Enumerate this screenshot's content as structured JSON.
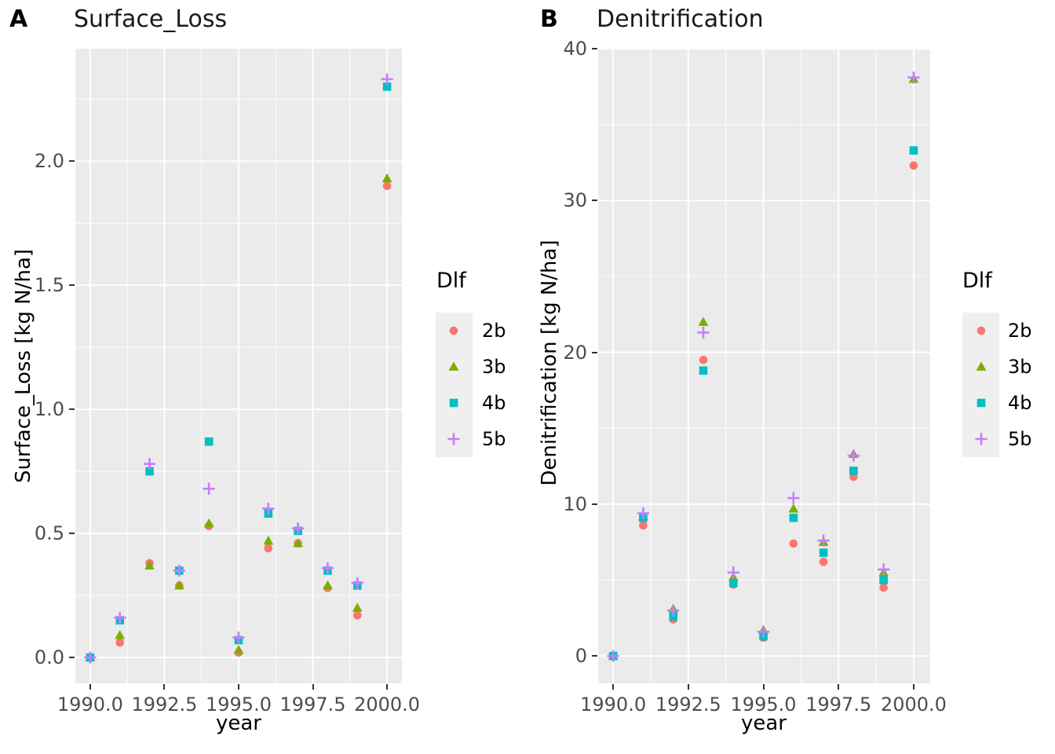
{
  "palette": {
    "panel_background": "#EBEBEB",
    "grid_line": "#FFFFFF",
    "tick_label_color": "#4D4D4D",
    "tick_mark_color": "#333333",
    "axis_title_color": "#000000",
    "legend_key_background": "#EFEFEF",
    "series_colors": {
      "2b": "#F8766D",
      "3b": "#7CAE00",
      "4b": "#00BFC4",
      "5b": "#C77CFF"
    }
  },
  "legend": {
    "title": "Dlf",
    "entries": [
      {
        "label": "2b",
        "shape": "circle",
        "color": "#F8766D"
      },
      {
        "label": "3b",
        "shape": "triangle",
        "color": "#7CAE00"
      },
      {
        "label": "4b",
        "shape": "square",
        "color": "#00BFC4"
      },
      {
        "label": "5b",
        "shape": "plus",
        "color": "#C77CFF"
      }
    ]
  },
  "chart_data": [
    {
      "type": "scatter",
      "tag": "A",
      "title": "Surface_Loss",
      "xlabel": "year",
      "ylabel": "Surface_Loss [kg N/ha]",
      "x": [
        1990,
        1991,
        1992,
        1993,
        1994,
        1995,
        1996,
        1997,
        1998,
        1999,
        2000
      ],
      "series": [
        {
          "name": "2b",
          "shape": "circle",
          "color": "#F8766D",
          "values": [
            0.0,
            0.06,
            0.38,
            0.29,
            0.53,
            0.02,
            0.44,
            0.46,
            0.28,
            0.17,
            1.9
          ]
        },
        {
          "name": "3b",
          "shape": "triangle",
          "color": "#7CAE00",
          "values": [
            0.0,
            0.09,
            0.37,
            0.29,
            0.54,
            0.03,
            0.47,
            0.46,
            0.29,
            0.2,
            1.93
          ]
        },
        {
          "name": "4b",
          "shape": "square",
          "color": "#00BFC4",
          "values": [
            0.0,
            0.15,
            0.75,
            0.35,
            0.87,
            0.07,
            0.58,
            0.51,
            0.35,
            0.29,
            2.3
          ]
        },
        {
          "name": "5b",
          "shape": "plus",
          "color": "#C77CFF",
          "values": [
            0.0,
            0.16,
            0.78,
            0.35,
            0.68,
            0.08,
            0.6,
            0.52,
            0.36,
            0.3,
            2.33
          ]
        }
      ],
      "x_ticks": [
        {
          "label": "1990.0",
          "value": 1990.0
        },
        {
          "label": "1992.5",
          "value": 1992.5
        },
        {
          "label": "1995.0",
          "value": 1995.0
        },
        {
          "label": "1997.5",
          "value": 1997.5
        },
        {
          "label": "2000.0",
          "value": 2000.0
        }
      ],
      "y_ticks": [
        {
          "label": "0.0",
          "value": 0.0
        },
        {
          "label": "0.5",
          "value": 0.5
        },
        {
          "label": "1.0",
          "value": 1.0
        },
        {
          "label": "1.5",
          "value": 1.5
        },
        {
          "label": "2.0",
          "value": 2.0
        }
      ],
      "minor_x": [
        1991.25,
        1993.75,
        1996.25,
        1998.75
      ],
      "minor_y": [
        0.25,
        0.75,
        1.25,
        1.75,
        2.25
      ],
      "xlim": [
        1989.5,
        2000.5
      ],
      "ylim": [
        -0.104,
        2.453
      ],
      "grid": true,
      "legend_position": "right"
    },
    {
      "type": "scatter",
      "tag": "B",
      "title": "Denitrification",
      "xlabel": "year",
      "ylabel": "Denitrification [kg N/ha]",
      "x": [
        1990,
        1991,
        1992,
        1993,
        1994,
        1995,
        1996,
        1997,
        1998,
        1999,
        2000
      ],
      "series": [
        {
          "name": "2b",
          "shape": "circle",
          "color": "#F8766D",
          "values": [
            0.0,
            8.6,
            2.4,
            19.5,
            4.7,
            1.2,
            7.4,
            6.2,
            11.8,
            4.5,
            32.3
          ]
        },
        {
          "name": "3b",
          "shape": "triangle",
          "color": "#7CAE00",
          "values": [
            0.0,
            9.2,
            3.1,
            22.0,
            5.2,
            1.7,
            9.7,
            7.5,
            13.3,
            5.5,
            38.0
          ]
        },
        {
          "name": "4b",
          "shape": "square",
          "color": "#00BFC4",
          "values": [
            0.0,
            9.1,
            2.6,
            18.8,
            4.8,
            1.3,
            9.1,
            6.8,
            12.2,
            5.0,
            33.3
          ]
        },
        {
          "name": "5b",
          "shape": "plus",
          "color": "#C77CFF",
          "values": [
            0.0,
            9.4,
            3.0,
            21.3,
            5.5,
            1.6,
            10.4,
            7.6,
            13.2,
            5.7,
            38.1
          ]
        }
      ],
      "x_ticks": [
        {
          "label": "1990.0",
          "value": 1990.0
        },
        {
          "label": "1992.5",
          "value": 1992.5
        },
        {
          "label": "1995.0",
          "value": 1995.0
        },
        {
          "label": "1997.5",
          "value": 1997.5
        },
        {
          "label": "2000.0",
          "value": 2000.0
        }
      ],
      "y_ticks": [
        {
          "label": "0",
          "value": 0
        },
        {
          "label": "10",
          "value": 10
        },
        {
          "label": "20",
          "value": 20
        },
        {
          "label": "30",
          "value": 30
        },
        {
          "label": "40",
          "value": 40
        }
      ],
      "minor_x": [
        1991.25,
        1993.75,
        1996.25,
        1998.75
      ],
      "minor_y": [
        5,
        15,
        25,
        35
      ],
      "xlim": [
        1989.5,
        2000.55
      ],
      "ylim": [
        -1.8,
        40.0
      ],
      "grid": true,
      "legend_position": "right"
    }
  ]
}
